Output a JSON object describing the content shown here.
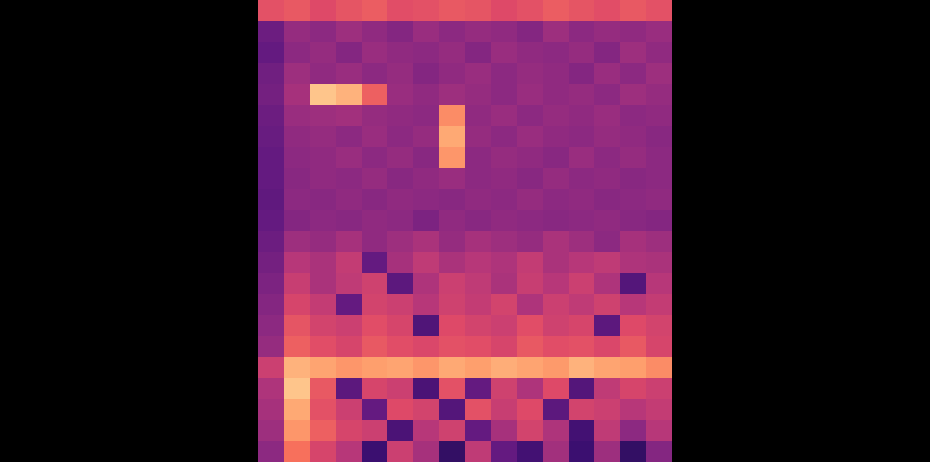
{
  "chart_data": {
    "type": "heatmap",
    "color": "magma",
    "tick_labels": false,
    "grid": false,
    "zlim": [
      0,
      100
    ],
    "cells": [
      [
        62,
        64,
        60,
        63,
        65,
        61,
        62,
        64,
        63,
        60,
        62,
        65,
        63,
        61,
        64,
        62
      ],
      [
        32,
        42,
        40,
        44,
        41,
        38,
        43,
        40,
        42,
        41,
        38,
        44,
        40,
        42,
        41,
        43
      ],
      [
        30,
        40,
        42,
        38,
        43,
        41,
        40,
        42,
        38,
        43,
        41,
        40,
        42,
        38,
        44,
        41
      ],
      [
        33,
        44,
        41,
        43,
        40,
        42,
        38,
        41,
        43,
        40,
        42,
        41,
        38,
        43,
        40,
        44
      ],
      [
        34,
        46,
        88,
        84,
        66,
        43,
        41,
        44,
        42,
        40,
        43,
        41,
        42,
        40,
        44,
        42
      ],
      [
        32,
        43,
        44,
        45,
        42,
        41,
        40,
        76,
        41,
        43,
        40,
        42,
        41,
        43,
        40,
        41
      ],
      [
        31,
        41,
        42,
        40,
        43,
        40,
        42,
        82,
        42,
        40,
        43,
        41,
        40,
        42,
        41,
        39
      ],
      [
        30,
        40,
        41,
        43,
        40,
        42,
        39,
        78,
        40,
        42,
        41,
        39,
        43,
        40,
        42,
        40
      ],
      [
        30,
        39,
        41,
        40,
        42,
        39,
        41,
        43,
        40,
        41,
        39,
        42,
        40,
        41,
        39,
        40
      ],
      [
        29,
        40,
        39,
        41,
        39,
        41,
        40,
        39,
        41,
        40,
        42,
        40,
        41,
        39,
        40,
        41
      ],
      [
        30,
        38,
        40,
        39,
        41,
        40,
        36,
        41,
        39,
        41,
        40,
        39,
        40,
        41,
        39,
        38
      ],
      [
        32,
        44,
        42,
        46,
        41,
        44,
        47,
        42,
        46,
        44,
        42,
        47,
        44,
        40,
        46,
        44
      ],
      [
        34,
        50,
        47,
        53,
        30,
        46,
        52,
        47,
        50,
        48,
        53,
        47,
        50,
        52,
        48,
        47
      ],
      [
        36,
        54,
        47,
        52,
        56,
        28,
        48,
        55,
        52,
        47,
        54,
        50,
        55,
        48,
        26,
        50
      ],
      [
        38,
        58,
        53,
        30,
        57,
        55,
        50,
        56,
        53,
        57,
        48,
        55,
        52,
        56,
        50,
        53
      ],
      [
        40,
        63,
        57,
        55,
        61,
        58,
        25,
        60,
        57,
        55,
        61,
        56,
        58,
        28,
        60,
        57
      ],
      [
        42,
        66,
        61,
        58,
        64,
        61,
        59,
        62,
        61,
        58,
        64,
        61,
        62,
        59,
        64,
        58
      ],
      [
        55,
        84,
        81,
        78,
        80,
        81,
        78,
        82,
        80,
        83,
        81,
        79,
        84,
        81,
        80,
        76
      ],
      [
        48,
        88,
        64,
        28,
        58,
        55,
        24,
        62,
        30,
        56,
        48,
        60,
        26,
        52,
        58,
        55
      ],
      [
        46,
        82,
        62,
        55,
        30,
        60,
        57,
        26,
        62,
        54,
        60,
        28,
        57,
        55,
        50,
        53
      ],
      [
        44,
        78,
        66,
        58,
        55,
        24,
        50,
        56,
        30,
        46,
        57,
        48,
        22,
        52,
        40,
        50
      ],
      [
        40,
        70,
        58,
        50,
        20,
        55,
        46,
        18,
        52,
        30,
        22,
        45,
        20,
        44,
        18,
        38
      ]
    ]
  }
}
